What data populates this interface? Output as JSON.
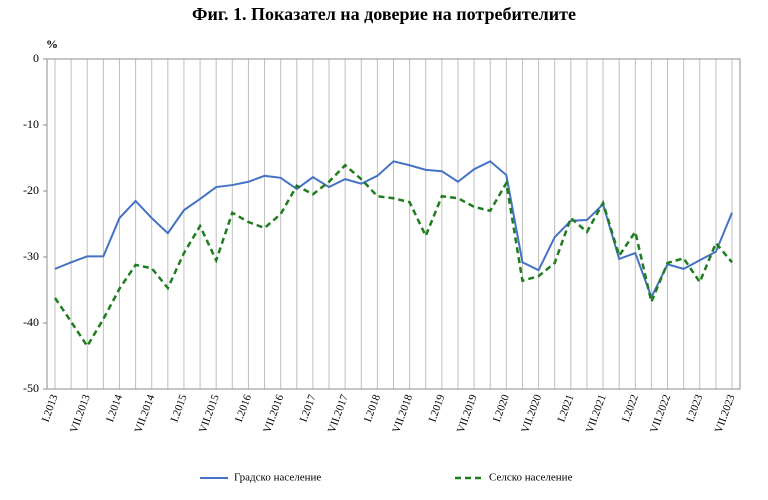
{
  "chart_data": {
    "type": "line",
    "title": "Фиг. 1. Показател на доверие на потребителите",
    "y_axis_label": "%",
    "categories": [
      "I.2013",
      null,
      "VII.2013",
      null,
      "I.2014",
      null,
      "VII.2014",
      null,
      "I.2015",
      null,
      "VII.2015",
      null,
      "I.2016",
      null,
      "VII.2016",
      null,
      "I.2017",
      null,
      "VII.2017",
      null,
      "I.2018",
      null,
      "VII.2018",
      null,
      "I.2019",
      null,
      "VII.2019",
      null,
      "I.2020",
      null,
      "VII.2020",
      null,
      "I.2021",
      null,
      "VII.2021",
      null,
      "I.2022",
      null,
      "VII.2022",
      null,
      "I.2023",
      null,
      "VII.2023"
    ],
    "series": [
      {
        "name": "Градско население",
        "color": "#4472c4",
        "dash": "solid",
        "values": [
          -31.8,
          -30.8,
          -29.9,
          -29.9,
          -24.1,
          -21.5,
          -24.1,
          -26.4,
          -22.9,
          -21.2,
          -19.4,
          -19.1,
          -18.6,
          -17.7,
          -18.0,
          -19.7,
          -17.9,
          -19.4,
          -18.2,
          -18.9,
          -17.7,
          -15.5,
          -16.1,
          -16.8,
          -17.0,
          -18.6,
          -16.7,
          -15.5,
          -17.6,
          -30.8,
          -32.0,
          -27.0,
          -24.5,
          -24.4,
          -22.0,
          -30.3,
          -29.4,
          -36.1,
          -31.1,
          -31.8,
          -30.5,
          -29.2,
          -23.3
        ]
      },
      {
        "name": "Селско население",
        "color": "#1e7d1e",
        "dash": "dashed",
        "values": [
          -36.2,
          -39.8,
          -43.5,
          -39.4,
          -34.8,
          -31.2,
          -31.7,
          -34.7,
          -29.4,
          -25.3,
          -30.5,
          -23.3,
          -24.7,
          -25.6,
          -23.5,
          -19.2,
          -20.5,
          -18.6,
          -16.1,
          -18.2,
          -20.8,
          -21.1,
          -21.7,
          -26.8,
          -20.8,
          -21.1,
          -22.4,
          -23.0,
          -18.8,
          -33.6,
          -32.9,
          -30.9,
          -24.1,
          -26.2,
          -21.8,
          -29.8,
          -26.2,
          -36.8,
          -30.9,
          -30.2,
          -33.8,
          -27.9,
          -30.8
        ]
      }
    ],
    "ylim": [
      -50,
      0
    ],
    "yticks": [
      -50,
      -40,
      -30,
      -20,
      -10,
      0
    ],
    "grid": "x",
    "legend": "bottom"
  }
}
